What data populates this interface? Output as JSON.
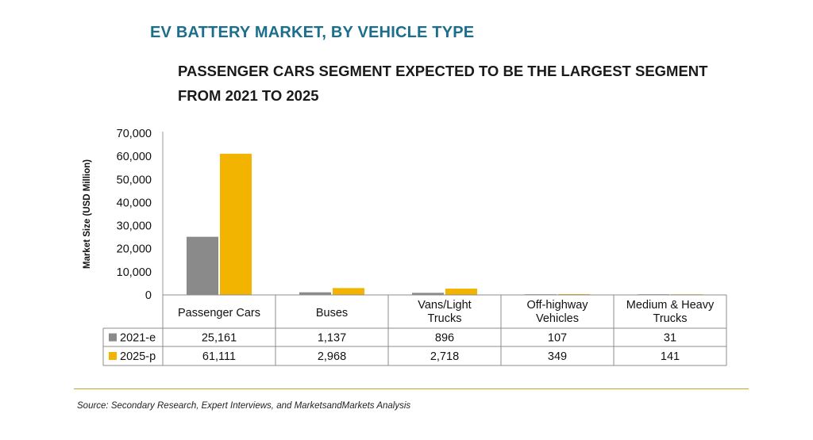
{
  "title": "EV BATTERY MARKET, BY VEHICLE TYPE",
  "subtitle_lines": [
    "PASSENGER CARS SEGMENT EXPECTED TO BE THE LARGEST SEGMENT",
    "FROM 2021 TO 2025"
  ],
  "source": "Source: Secondary Research, Expert Interviews, and MarketsandMarkets Analysis",
  "colors": {
    "title": "#1b6e8c",
    "series_2021": "#8a8a8a",
    "series_2025": "#f2b400",
    "source_rule": "#c9a227"
  },
  "chart_data": {
    "type": "bar",
    "title": "EV BATTERY MARKET, BY VEHICLE TYPE",
    "ylabel": "Market Size (USD Million)",
    "ylim": [
      0,
      70000
    ],
    "yticks": [
      "0",
      "10,000",
      "20,000",
      "30,000",
      "40,000",
      "50,000",
      "60,000",
      "70,000"
    ],
    "categories": [
      [
        "Passenger Cars"
      ],
      [
        "Buses"
      ],
      [
        "Vans/Light",
        "Trucks"
      ],
      [
        "Off-highway",
        "Vehicles"
      ],
      [
        "Medium & Heavy",
        "Trucks"
      ]
    ],
    "series": [
      {
        "name": "2021-e",
        "values": [
          25161,
          1137,
          896,
          107,
          31
        ],
        "labels": [
          "25,161",
          "1,137",
          "896",
          "107",
          "31"
        ]
      },
      {
        "name": "2025-p",
        "values": [
          61111,
          2968,
          2718,
          349,
          141
        ],
        "labels": [
          "61,111",
          "2,968",
          "2,718",
          "349",
          "141"
        ]
      }
    ]
  }
}
